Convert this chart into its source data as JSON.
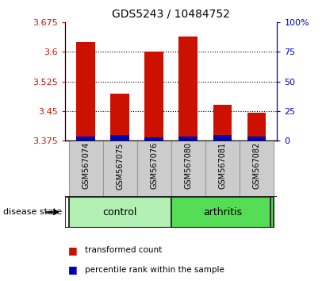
{
  "title": "GDS5243 / 10484752",
  "samples": [
    "GSM567074",
    "GSM567075",
    "GSM567076",
    "GSM567080",
    "GSM567081",
    "GSM567082"
  ],
  "red_values": [
    3.625,
    3.495,
    3.601,
    3.64,
    3.465,
    3.445
  ],
  "blue_percentiles": [
    3.5,
    4.5,
    3.0,
    3.5,
    5.0,
    3.5
  ],
  "y_min": 3.375,
  "y_max": 3.675,
  "y_ticks": [
    3.375,
    3.45,
    3.525,
    3.6,
    3.675
  ],
  "right_y_ticks": [
    0,
    25,
    50,
    75,
    100
  ],
  "right_y_labels": [
    "0",
    "25",
    "50",
    "75",
    "100%"
  ],
  "groups": [
    {
      "label": "control",
      "indices": [
        0,
        1,
        2
      ],
      "color": "#b3f0b3"
    },
    {
      "label": "arthritis",
      "indices": [
        3,
        4,
        5
      ],
      "color": "#55dd55"
    }
  ],
  "bar_color_red": "#cc1100",
  "bar_color_blue": "#0000bb",
  "bar_width": 0.55,
  "left_tick_color": "#cc1100",
  "right_tick_color": "#0000bb",
  "grid_color": "black",
  "legend_red_label": "transformed count",
  "legend_blue_label": "percentile rank within the sample",
  "disease_state_label": "disease state"
}
